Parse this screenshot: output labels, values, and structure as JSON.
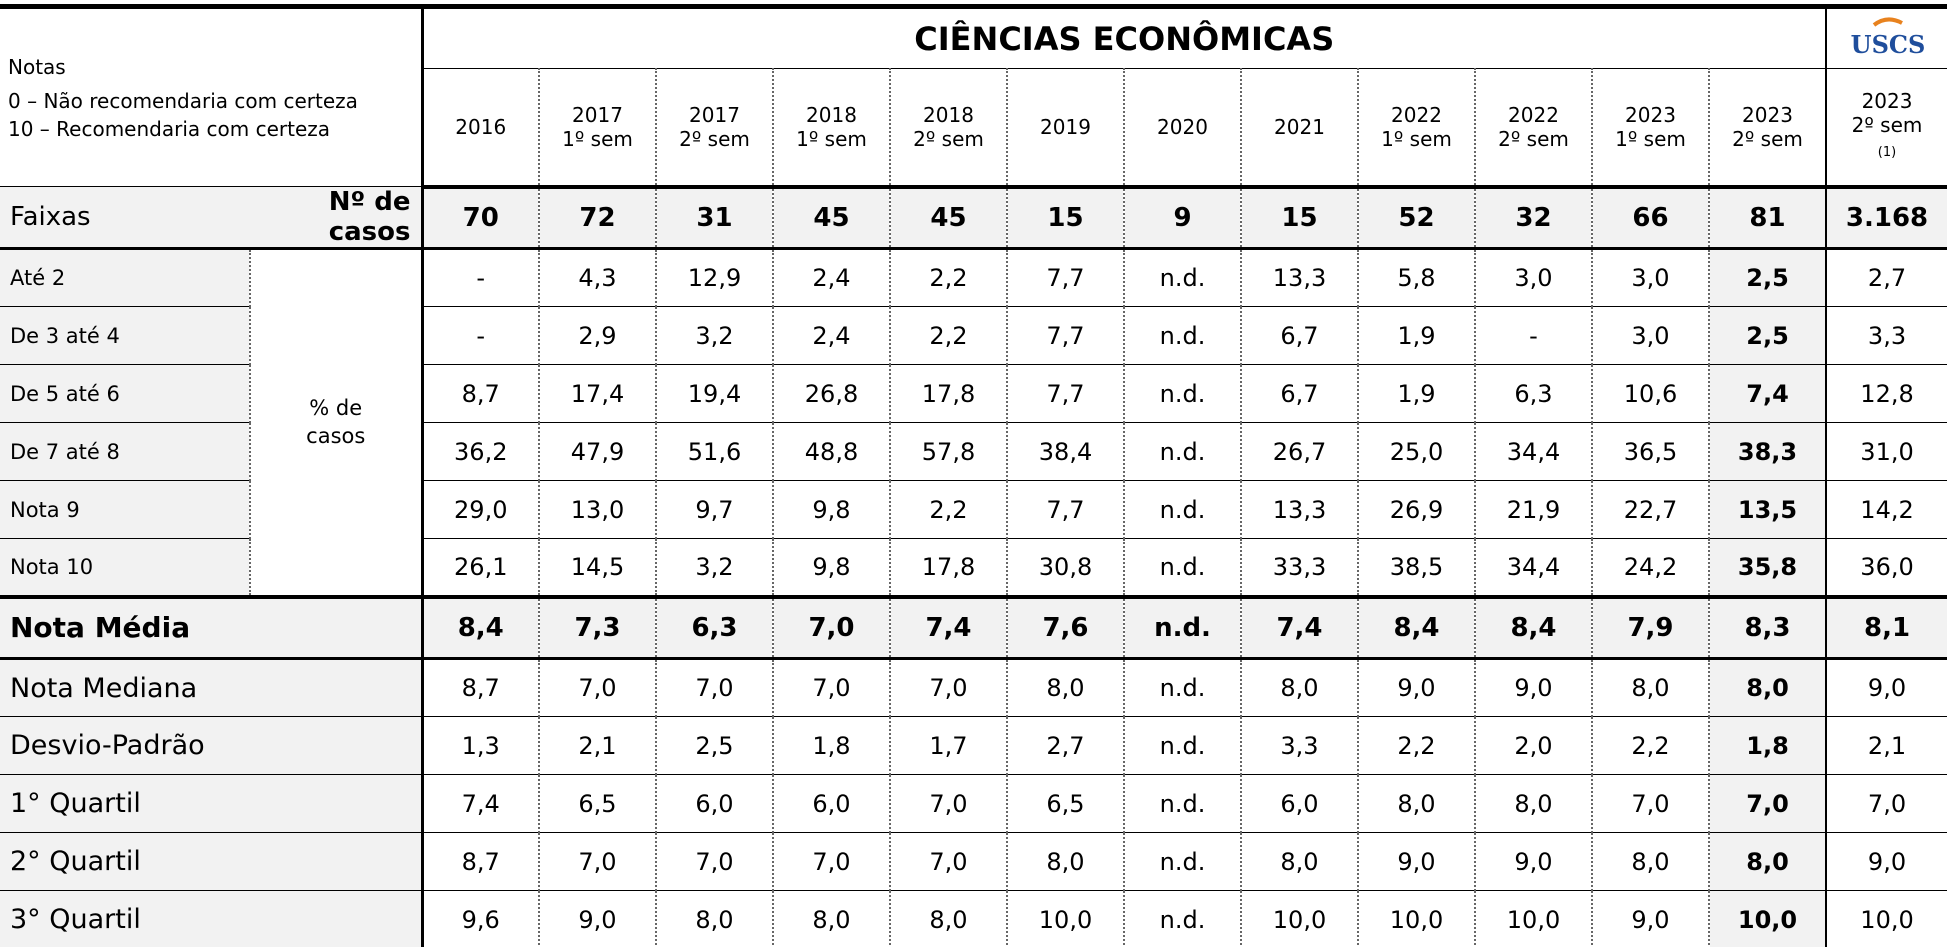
{
  "header": {
    "notes": [
      "Notas",
      "0 – Não recomendaria com certeza",
      "10 – Recomendaria com certeza"
    ],
    "title": "CIÊNCIAS ECONÔMICAS",
    "logo": "USCS",
    "columns": [
      {
        "year": "2016"
      },
      {
        "year": "2017",
        "sem": "1º sem"
      },
      {
        "year": "2017",
        "sem": "2º sem"
      },
      {
        "year": "2018",
        "sem": "1º sem"
      },
      {
        "year": "2018",
        "sem": "2º sem"
      },
      {
        "year": "2019"
      },
      {
        "year": "2020"
      },
      {
        "year": "2021"
      },
      {
        "year": "2022",
        "sem": "1º sem"
      },
      {
        "year": "2022",
        "sem": "2º sem"
      },
      {
        "year": "2023",
        "sem": "1º sem"
      },
      {
        "year": "2023",
        "sem": "2º sem"
      },
      {
        "year": "2023",
        "sem": "2º sem",
        "note": "(1)"
      }
    ]
  },
  "cases": {
    "label": "Faixas",
    "count_label": "Nº de casos",
    "values": [
      "70",
      "72",
      "31",
      "45",
      "45",
      "15",
      "9",
      "15",
      "52",
      "32",
      "66",
      "81",
      "3.168"
    ]
  },
  "percent": {
    "group_label": "% de casos",
    "rows": [
      {
        "label": "Até 2",
        "values": [
          "-",
          "4,3",
          "12,9",
          "2,4",
          "2,2",
          "7,7",
          "n.d.",
          "13,3",
          "5,8",
          "3,0",
          "3,0",
          "2,5",
          "2,7"
        ]
      },
      {
        "label": "De 3 até 4",
        "values": [
          "-",
          "2,9",
          "3,2",
          "2,4",
          "2,2",
          "7,7",
          "n.d.",
          "6,7",
          "1,9",
          "-",
          "3,0",
          "2,5",
          "3,3"
        ]
      },
      {
        "label": "De 5 até 6",
        "values": [
          "8,7",
          "17,4",
          "19,4",
          "26,8",
          "17,8",
          "7,7",
          "n.d.",
          "6,7",
          "1,9",
          "6,3",
          "10,6",
          "7,4",
          "12,8"
        ]
      },
      {
        "label": "De 7 até 8",
        "values": [
          "36,2",
          "47,9",
          "51,6",
          "48,8",
          "57,8",
          "38,4",
          "n.d.",
          "26,7",
          "25,0",
          "34,4",
          "36,5",
          "38,3",
          "31,0"
        ]
      },
      {
        "label": "Nota 9",
        "values": [
          "29,0",
          "13,0",
          "9,7",
          "9,8",
          "2,2",
          "7,7",
          "n.d.",
          "13,3",
          "26,9",
          "21,9",
          "22,7",
          "13,5",
          "14,2"
        ]
      },
      {
        "label": "Nota 10",
        "values": [
          "26,1",
          "14,5",
          "3,2",
          "9,8",
          "17,8",
          "30,8",
          "n.d.",
          "33,3",
          "38,5",
          "34,4",
          "24,2",
          "35,8",
          "36,0"
        ]
      }
    ]
  },
  "mean": {
    "label": "Nota Média",
    "values": [
      "8,4",
      "7,3",
      "6,3",
      "7,0",
      "7,4",
      "7,6",
      "n.d.",
      "7,4",
      "8,4",
      "8,4",
      "7,9",
      "8,3",
      "8,1"
    ]
  },
  "stats": [
    {
      "label": "Nota Mediana",
      "values": [
        "8,7",
        "7,0",
        "7,0",
        "7,0",
        "7,0",
        "8,0",
        "n.d.",
        "8,0",
        "9,0",
        "9,0",
        "8,0",
        "8,0",
        "9,0"
      ]
    },
    {
      "label": "Desvio-Padrão",
      "values": [
        "1,3",
        "2,1",
        "2,5",
        "1,8",
        "1,7",
        "2,7",
        "n.d.",
        "3,3",
        "2,2",
        "2,0",
        "2,2",
        "1,8",
        "2,1"
      ]
    },
    {
      "label": "1° Quartil",
      "values": [
        "7,4",
        "6,5",
        "6,0",
        "6,0",
        "7,0",
        "6,5",
        "n.d.",
        "6,0",
        "8,0",
        "8,0",
        "7,0",
        "7,0",
        "7,0"
      ]
    },
    {
      "label": "2° Quartil",
      "values": [
        "8,7",
        "7,0",
        "7,0",
        "7,0",
        "7,0",
        "8,0",
        "n.d.",
        "8,0",
        "9,0",
        "9,0",
        "8,0",
        "8,0",
        "9,0"
      ]
    },
    {
      "label": "3° Quartil",
      "values": [
        "9,6",
        "9,0",
        "8,0",
        "8,0",
        "8,0",
        "10,0",
        "n.d.",
        "10,0",
        "10,0",
        "10,0",
        "9,0",
        "10,0",
        "10,0"
      ]
    }
  ]
}
